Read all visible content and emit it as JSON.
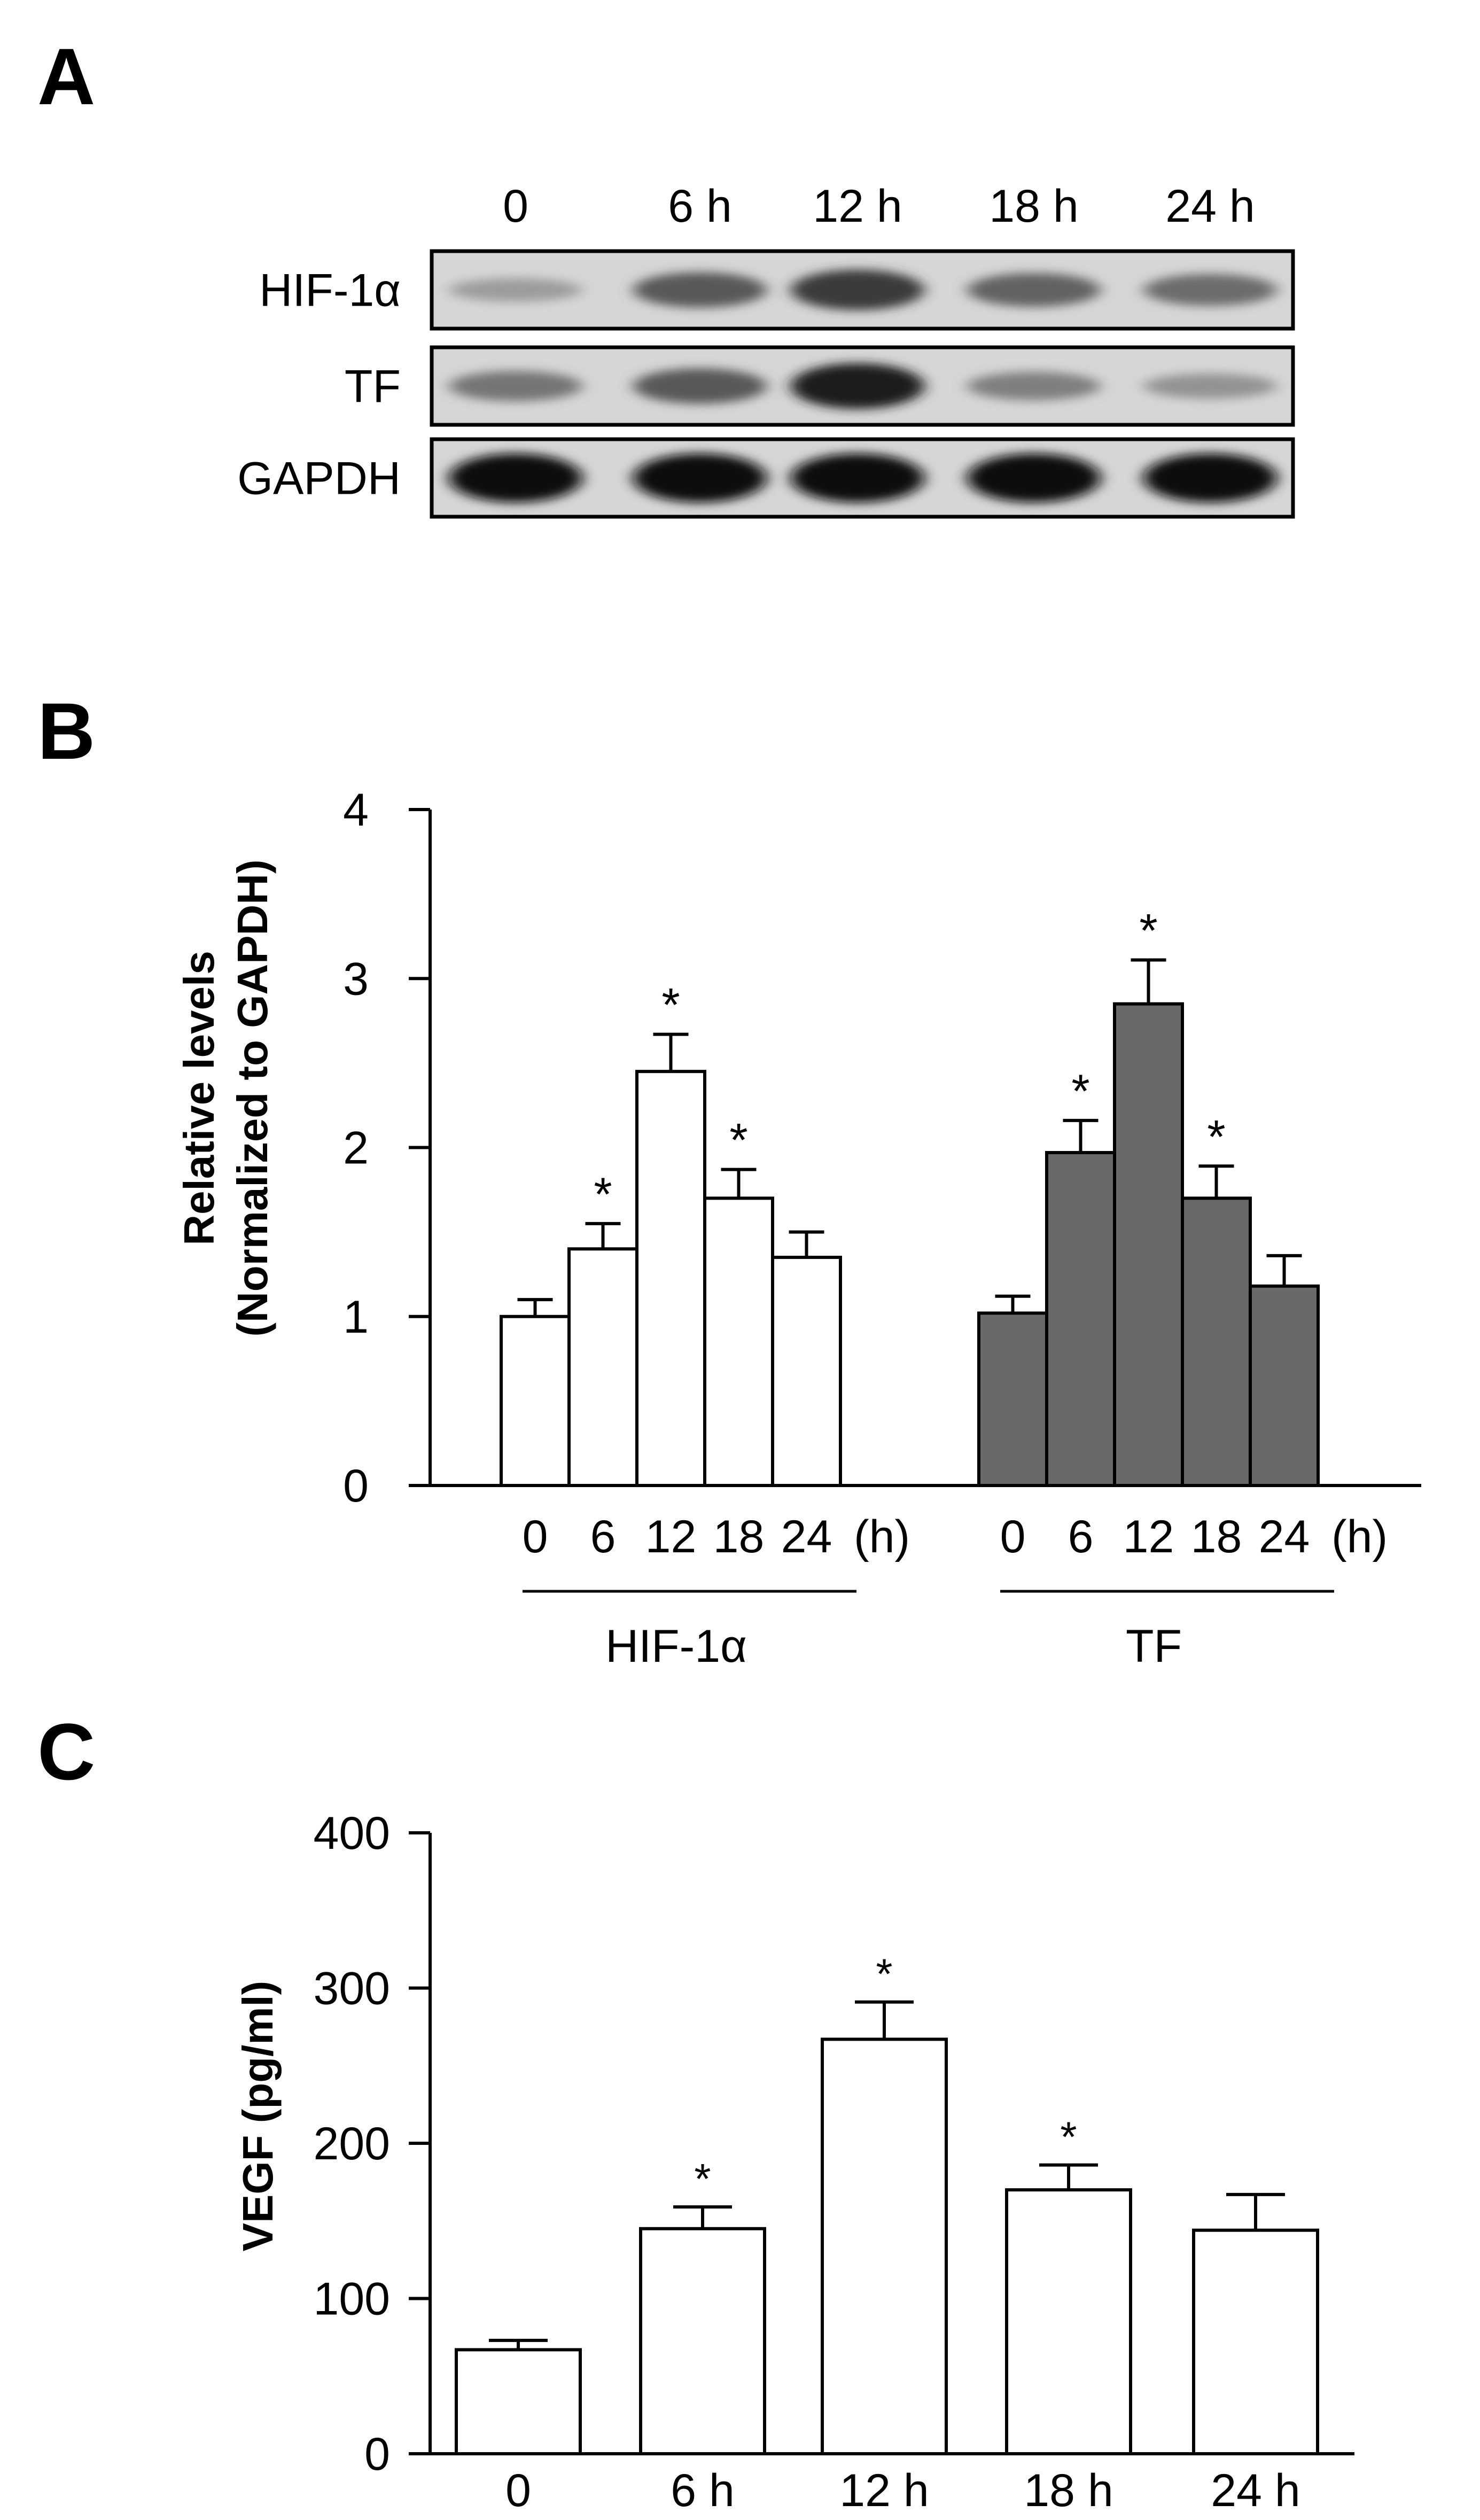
{
  "panel_labels": {
    "a": "A",
    "b": "B",
    "c": "C"
  },
  "blot": {
    "lanes": [
      "0",
      "6 h",
      "12 h",
      "18 h",
      "24 h"
    ],
    "rows": [
      {
        "label": "HIF-1α",
        "intensity": [
          0.25,
          0.6,
          0.75,
          0.55,
          0.5
        ]
      },
      {
        "label": "TF",
        "intensity": [
          0.45,
          0.6,
          0.9,
          0.4,
          0.3
        ]
      },
      {
        "label": "GAPDH",
        "intensity": [
          1.0,
          1.0,
          1.0,
          1.0,
          1.0
        ]
      }
    ]
  },
  "chart_data": [
    {
      "type": "bar",
      "panel": "B",
      "ylabel": "Relative levels",
      "ylabel2": "(Normalized to GAPDH)",
      "ylim": [
        0,
        4
      ],
      "yticks": [
        0,
        1,
        2,
        3,
        4
      ],
      "x_unit": "(h)",
      "grid": false,
      "groups": [
        {
          "name": "HIF-1α",
          "fill": "#ffffff",
          "categories": [
            "0",
            "6",
            "12",
            "18",
            "24"
          ],
          "values": [
            1.0,
            1.4,
            2.45,
            1.7,
            1.35
          ],
          "errors": [
            0.1,
            0.15,
            0.22,
            0.17,
            0.15
          ],
          "significant": [
            "",
            "*",
            "*",
            "*",
            ""
          ]
        },
        {
          "name": "TF",
          "fill": "#696969",
          "categories": [
            "0",
            "6",
            "12",
            "18",
            "24"
          ],
          "values": [
            1.02,
            1.97,
            2.85,
            1.7,
            1.18
          ],
          "errors": [
            0.1,
            0.19,
            0.26,
            0.19,
            0.18
          ],
          "significant": [
            "",
            "*",
            "*",
            "*",
            ""
          ]
        }
      ]
    },
    {
      "type": "bar",
      "panel": "C",
      "ylabel": "VEGF (pg/ml)",
      "ylim": [
        0,
        400
      ],
      "yticks": [
        0,
        100,
        200,
        300,
        400
      ],
      "grid": false,
      "categories": [
        "0",
        "6 h",
        "12 h",
        "18 h",
        "24 h"
      ],
      "values": [
        67,
        145,
        267,
        170,
        144
      ],
      "errors": [
        6,
        14,
        24,
        16,
        23
      ],
      "significant": [
        "",
        "*",
        "*",
        "*",
        ""
      ]
    }
  ]
}
